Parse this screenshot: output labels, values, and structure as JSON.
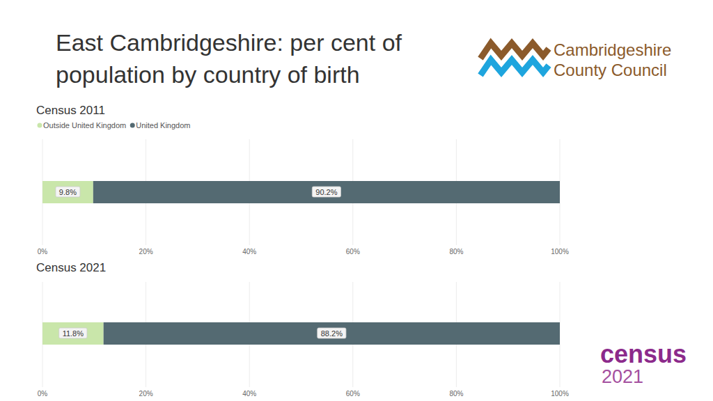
{
  "header": {
    "title": "East Cambridgeshire: per cent of population by country of birth",
    "logo": [
      "Cambridgeshire",
      "County Council"
    ],
    "badge": [
      "census",
      "2021"
    ]
  },
  "chart_data": [
    {
      "type": "bar",
      "title": "Census 2011",
      "orientation": "horizontal",
      "stacked": true,
      "data_labels": true,
      "grid": true,
      "legend": "top-left",
      "categories": [
        null
      ],
      "series": [
        {
          "name": "Outside United Kingdom",
          "color": "#c9e6aa",
          "values": [
            9.8
          ],
          "value_labels": [
            "9.8%"
          ]
        },
        {
          "name": "United Kingdom",
          "color": "#546a72",
          "values": [
            90.2
          ],
          "value_labels": [
            "90.2%"
          ]
        }
      ],
      "xlim": [
        0,
        100
      ],
      "xticks": [
        {
          "value": 0,
          "label": "0%"
        },
        {
          "value": 20,
          "label": "20%"
        },
        {
          "value": 40,
          "label": "40%"
        },
        {
          "value": 60,
          "label": "60%"
        },
        {
          "value": 80,
          "label": "80%"
        },
        {
          "value": 100,
          "label": "100%"
        }
      ]
    },
    {
      "type": "bar",
      "title": "Census 2021",
      "orientation": "horizontal",
      "stacked": true,
      "data_labels": true,
      "grid": true,
      "categories": [
        null
      ],
      "series": [
        {
          "name": "Outside United Kingdom",
          "color": "#c9e6aa",
          "values": [
            11.8
          ],
          "value_labels": [
            "11.8%"
          ]
        },
        {
          "name": "United Kingdom",
          "color": "#546a72",
          "values": [
            88.2
          ],
          "value_labels": [
            "88.2%"
          ]
        }
      ],
      "xlim": [
        0,
        100
      ],
      "xticks": [
        {
          "value": 0,
          "label": "0%"
        },
        {
          "value": 20,
          "label": "20%"
        },
        {
          "value": 40,
          "label": "40%"
        },
        {
          "value": 60,
          "label": "60%"
        },
        {
          "value": 80,
          "label": "80%"
        },
        {
          "value": 100,
          "label": "100%"
        }
      ]
    }
  ]
}
